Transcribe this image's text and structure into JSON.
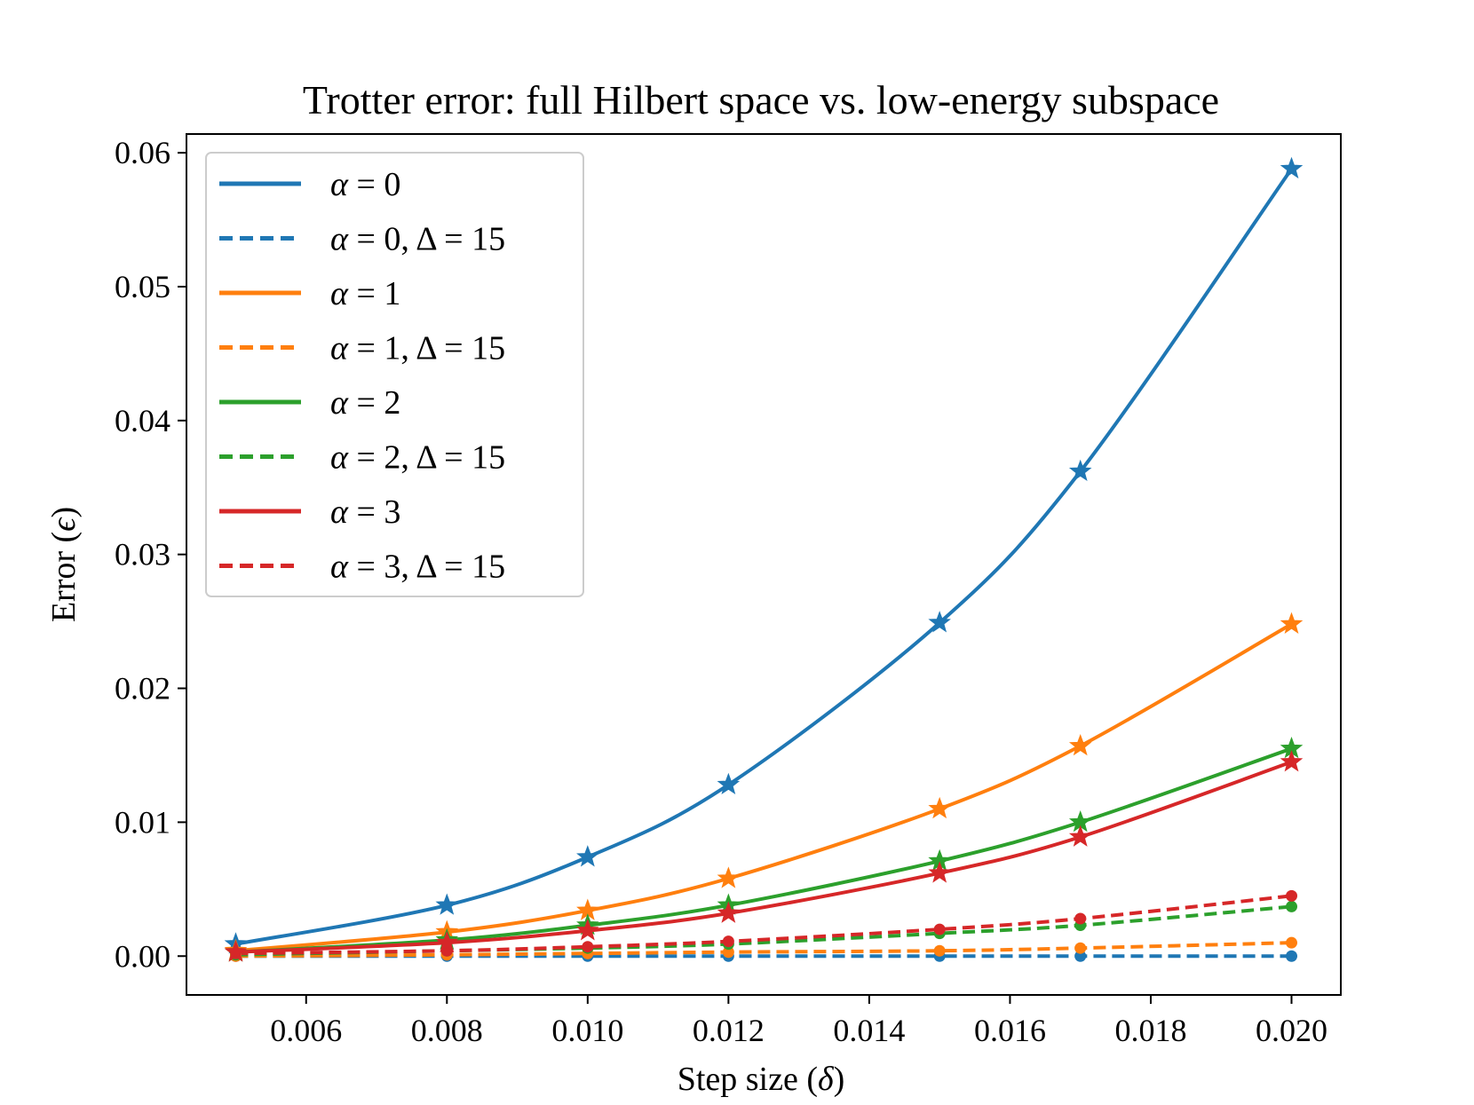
{
  "chart_data": {
    "type": "line",
    "title": "Trotter error: full Hilbert space vs. low-energy subspace",
    "xlabel_text": "Step size",
    "xlabel_symbol": "δ",
    "ylabel_text": "Error",
    "ylabel_symbol": "ϵ",
    "xlim": [
      0.0043,
      0.0207
    ],
    "ylim": [
      -0.0029,
      0.0614
    ],
    "x_ticks": [
      0.006,
      0.008,
      0.01,
      0.012,
      0.014,
      0.016,
      0.018,
      0.02
    ],
    "x_tick_labels": [
      "0.006",
      "0.008",
      "0.010",
      "0.012",
      "0.014",
      "0.016",
      "0.018",
      "0.020"
    ],
    "y_ticks": [
      0.0,
      0.01,
      0.02,
      0.03,
      0.04,
      0.05,
      0.06
    ],
    "y_tick_labels": [
      "0.00",
      "0.01",
      "0.02",
      "0.03",
      "0.04",
      "0.05",
      "0.06"
    ],
    "x": [
      0.005,
      0.008,
      0.01,
      0.012,
      0.015,
      0.017,
      0.02
    ],
    "legend_position": "upper-left",
    "series": [
      {
        "name": "α = 0",
        "alpha": "0",
        "delta": "",
        "color": "#1f77b4",
        "dashed": false,
        "marker": "star",
        "values": [
          0.0009,
          0.0038,
          0.0074,
          0.0128,
          0.0249,
          0.0362,
          0.0588
        ]
      },
      {
        "name": "α = 0, Δ = 15",
        "alpha": "0",
        "delta": "15",
        "color": "#1f77b4",
        "dashed": true,
        "marker": "dot",
        "values": [
          0.0,
          0.0,
          0.0,
          0.0,
          0.0,
          0.0,
          0.0
        ]
      },
      {
        "name": "α = 1",
        "alpha": "1",
        "delta": "",
        "color": "#ff7f0e",
        "dashed": false,
        "marker": "star",
        "values": [
          0.0004,
          0.0018,
          0.0034,
          0.0058,
          0.011,
          0.0157,
          0.0248
        ]
      },
      {
        "name": "α = 1, Δ = 15",
        "alpha": "1",
        "delta": "15",
        "color": "#ff7f0e",
        "dashed": true,
        "marker": "dot",
        "values": [
          0.0,
          0.0001,
          0.0002,
          0.0003,
          0.0004,
          0.0006,
          0.001
        ]
      },
      {
        "name": "α = 2",
        "alpha": "2",
        "delta": "",
        "color": "#2ca02c",
        "dashed": false,
        "marker": "star",
        "values": [
          0.0003,
          0.0012,
          0.0023,
          0.0038,
          0.0071,
          0.01,
          0.0155
        ]
      },
      {
        "name": "α = 2, Δ = 15",
        "alpha": "2",
        "delta": "15",
        "color": "#2ca02c",
        "dashed": true,
        "marker": "dot",
        "values": [
          0.0001,
          0.0004,
          0.0006,
          0.0009,
          0.0017,
          0.0023,
          0.0037
        ]
      },
      {
        "name": "α = 3",
        "alpha": "3",
        "delta": "",
        "color": "#d62728",
        "dashed": false,
        "marker": "star",
        "values": [
          0.0003,
          0.001,
          0.0019,
          0.0032,
          0.0062,
          0.0089,
          0.0145
        ]
      },
      {
        "name": "α = 3, Δ = 15",
        "alpha": "3",
        "delta": "15",
        "color": "#d62728",
        "dashed": true,
        "marker": "dot",
        "values": [
          0.0002,
          0.0004,
          0.0007,
          0.0011,
          0.002,
          0.0028,
          0.0045
        ]
      }
    ]
  }
}
